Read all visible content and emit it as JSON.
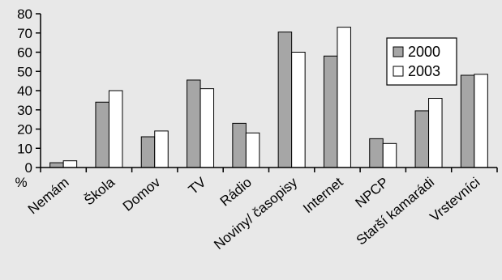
{
  "chart_data": {
    "type": "bar",
    "ylabel": "%",
    "ylim": [
      0,
      80
    ],
    "yticks": [
      0,
      10,
      20,
      30,
      40,
      50,
      60,
      70,
      80
    ],
    "grid": false,
    "legend_position": "right",
    "categories": [
      "Nemám",
      "Škola",
      "Domov",
      "TV",
      "Rádio",
      "Noviny/ časopisy",
      "Internet",
      "NPCP",
      "Starší kamarádi",
      "Vrstevníci"
    ],
    "series": [
      {
        "name": "2000",
        "color": "#a6a6a6",
        "values": [
          2.5,
          34,
          16,
          45.5,
          23,
          70.5,
          58,
          15,
          29.5,
          48
        ]
      },
      {
        "name": "2003",
        "color": "#ffffff",
        "values": [
          3.5,
          40,
          19,
          41,
          18,
          60,
          73,
          12.5,
          36,
          48.5
        ]
      }
    ]
  }
}
